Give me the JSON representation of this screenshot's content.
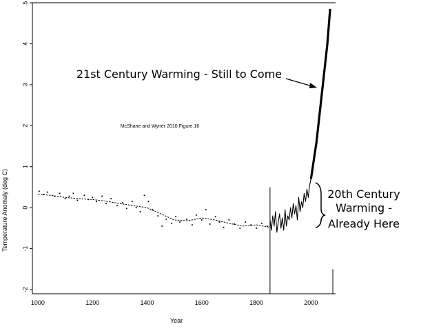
{
  "chart_data": {
    "type": "line",
    "title": "",
    "xlabel": "Year",
    "ylabel": "Temperature Anomaly (deg C)",
    "inner_label": "McShane and Wyner 2010 Figure 16",
    "xlim": [
      980,
      2090
    ],
    "ylim": [
      -2.1,
      5.0
    ],
    "x_ticks": [
      1000,
      1200,
      1400,
      1600,
      1800,
      2000
    ],
    "y_ticks": [
      -2,
      -1,
      0,
      1,
      2,
      3,
      4,
      5
    ],
    "grid": false,
    "series": [
      {
        "name": "",
        "style": "smooth",
        "x": [
          1000,
          1050,
          1100,
          1150,
          1200,
          1250,
          1300,
          1350,
          1400,
          1450,
          1500,
          1550,
          1600,
          1650,
          1700,
          1750,
          1800,
          1850
        ],
        "y": [
          0.33,
          0.3,
          0.25,
          0.22,
          0.2,
          0.16,
          0.1,
          0.05,
          0.0,
          -0.15,
          -0.3,
          -0.32,
          -0.25,
          -0.3,
          -0.38,
          -0.45,
          -0.42,
          -0.48
        ]
      },
      {
        "name": "",
        "style": "dots",
        "x": [
          1005,
          1020,
          1035,
          1060,
          1080,
          1100,
          1115,
          1130,
          1145,
          1170,
          1185,
          1200,
          1215,
          1235,
          1250,
          1268,
          1290,
          1310,
          1325,
          1345,
          1360,
          1375,
          1390,
          1405,
          1420,
          1440,
          1455,
          1470,
          1490,
          1505,
          1520,
          1545,
          1565,
          1580,
          1600,
          1615,
          1630,
          1650,
          1665,
          1680,
          1700,
          1720,
          1740,
          1760,
          1780,
          1800,
          1820,
          1840
        ],
        "y": [
          0.4,
          0.32,
          0.38,
          0.28,
          0.35,
          0.22,
          0.28,
          0.35,
          0.18,
          0.3,
          0.2,
          0.25,
          0.15,
          0.28,
          0.1,
          0.22,
          0.05,
          0.12,
          -0.02,
          0.15,
          0.0,
          -0.1,
          0.3,
          0.15,
          -0.05,
          -0.2,
          -0.45,
          -0.28,
          -0.38,
          -0.22,
          -0.35,
          -0.28,
          -0.42,
          -0.18,
          -0.3,
          -0.05,
          -0.4,
          -0.22,
          -0.35,
          -0.48,
          -0.3,
          -0.4,
          -0.5,
          -0.35,
          -0.42,
          -0.5,
          -0.38,
          -0.45
        ]
      },
      {
        "name": "",
        "style": "line",
        "x": [
          1850,
          1855,
          1860,
          1865,
          1870,
          1875,
          1880,
          1885,
          1890,
          1895,
          1900,
          1905,
          1910,
          1915,
          1920,
          1925,
          1930,
          1935,
          1940,
          1945,
          1950,
          1955,
          1960,
          1965,
          1970,
          1975,
          1980,
          1985,
          1990,
          1995,
          2000
        ],
        "y": [
          -0.3,
          -0.55,
          -0.2,
          -0.45,
          -0.1,
          -0.6,
          -0.35,
          -0.15,
          -0.5,
          -0.25,
          -0.55,
          -0.05,
          -0.45,
          -0.2,
          -0.3,
          0.0,
          -0.25,
          0.1,
          -0.15,
          0.05,
          -0.3,
          0.25,
          -0.1,
          0.15,
          0.0,
          0.35,
          0.15,
          0.45,
          0.25,
          0.55,
          0.7
        ]
      },
      {
        "name": "",
        "style": "thick-line",
        "x": [
          2000,
          2020,
          2040,
          2060,
          2070
        ],
        "y": [
          0.7,
          1.6,
          2.8,
          4.0,
          4.85
        ]
      }
    ],
    "vertical_lines": [
      {
        "x": 1850,
        "y_from": -2.1,
        "y_to": 0.5
      },
      {
        "x": 2080,
        "y_from": -2.1,
        "y_to": -1.5
      }
    ],
    "annotations": [
      {
        "text": "21st Century Warming - Still to Come",
        "target": {
          "x": 2025,
          "y": 3.0
        }
      },
      {
        "lines": [
          "20th Century",
          "Warming -",
          "Already Here"
        ],
        "bracket_y": [
          -0.5,
          0.65
        ]
      }
    ]
  }
}
